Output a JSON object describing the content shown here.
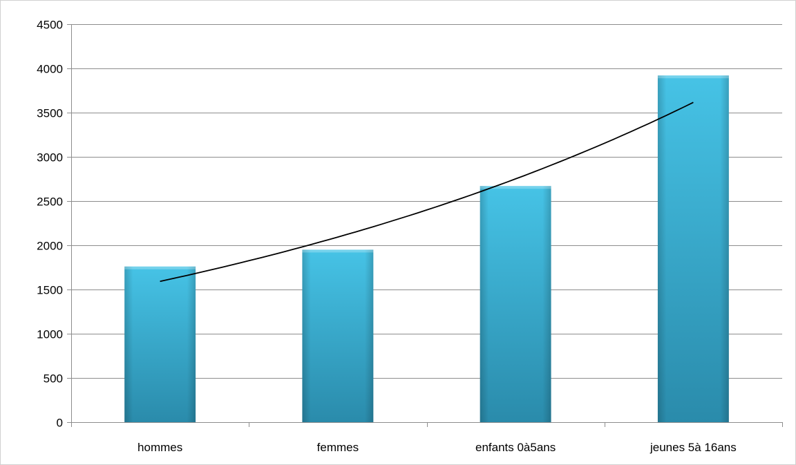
{
  "chart_data": {
    "type": "bar",
    "title": "",
    "xlabel": "",
    "ylabel": "",
    "categories": [
      "hommes",
      "femmes",
      "enfants 0à5ans",
      "jeunes 5à 16ans"
    ],
    "values": [
      1760,
      1950,
      2670,
      3920
    ],
    "ylim": [
      0,
      4500
    ],
    "yticks": [
      0,
      500,
      1000,
      1500,
      2000,
      2500,
      3000,
      3500,
      4000,
      4500
    ],
    "grid": true,
    "legend": "none",
    "trendline": {
      "type": "exponential",
      "points": [
        {
          "category": "hommes",
          "value": 1625
        },
        {
          "category": "femmes",
          "value": 2045
        },
        {
          "category": "enfants 0à5ans",
          "value": 2710
        },
        {
          "category": "jeunes 5à 16ans",
          "value": 3680
        }
      ]
    },
    "colors": {
      "bar_top": "#46c3e6",
      "bar_bottom": "#2a8bab",
      "grid": "#8c8c8c",
      "trendline": "#000000"
    }
  }
}
